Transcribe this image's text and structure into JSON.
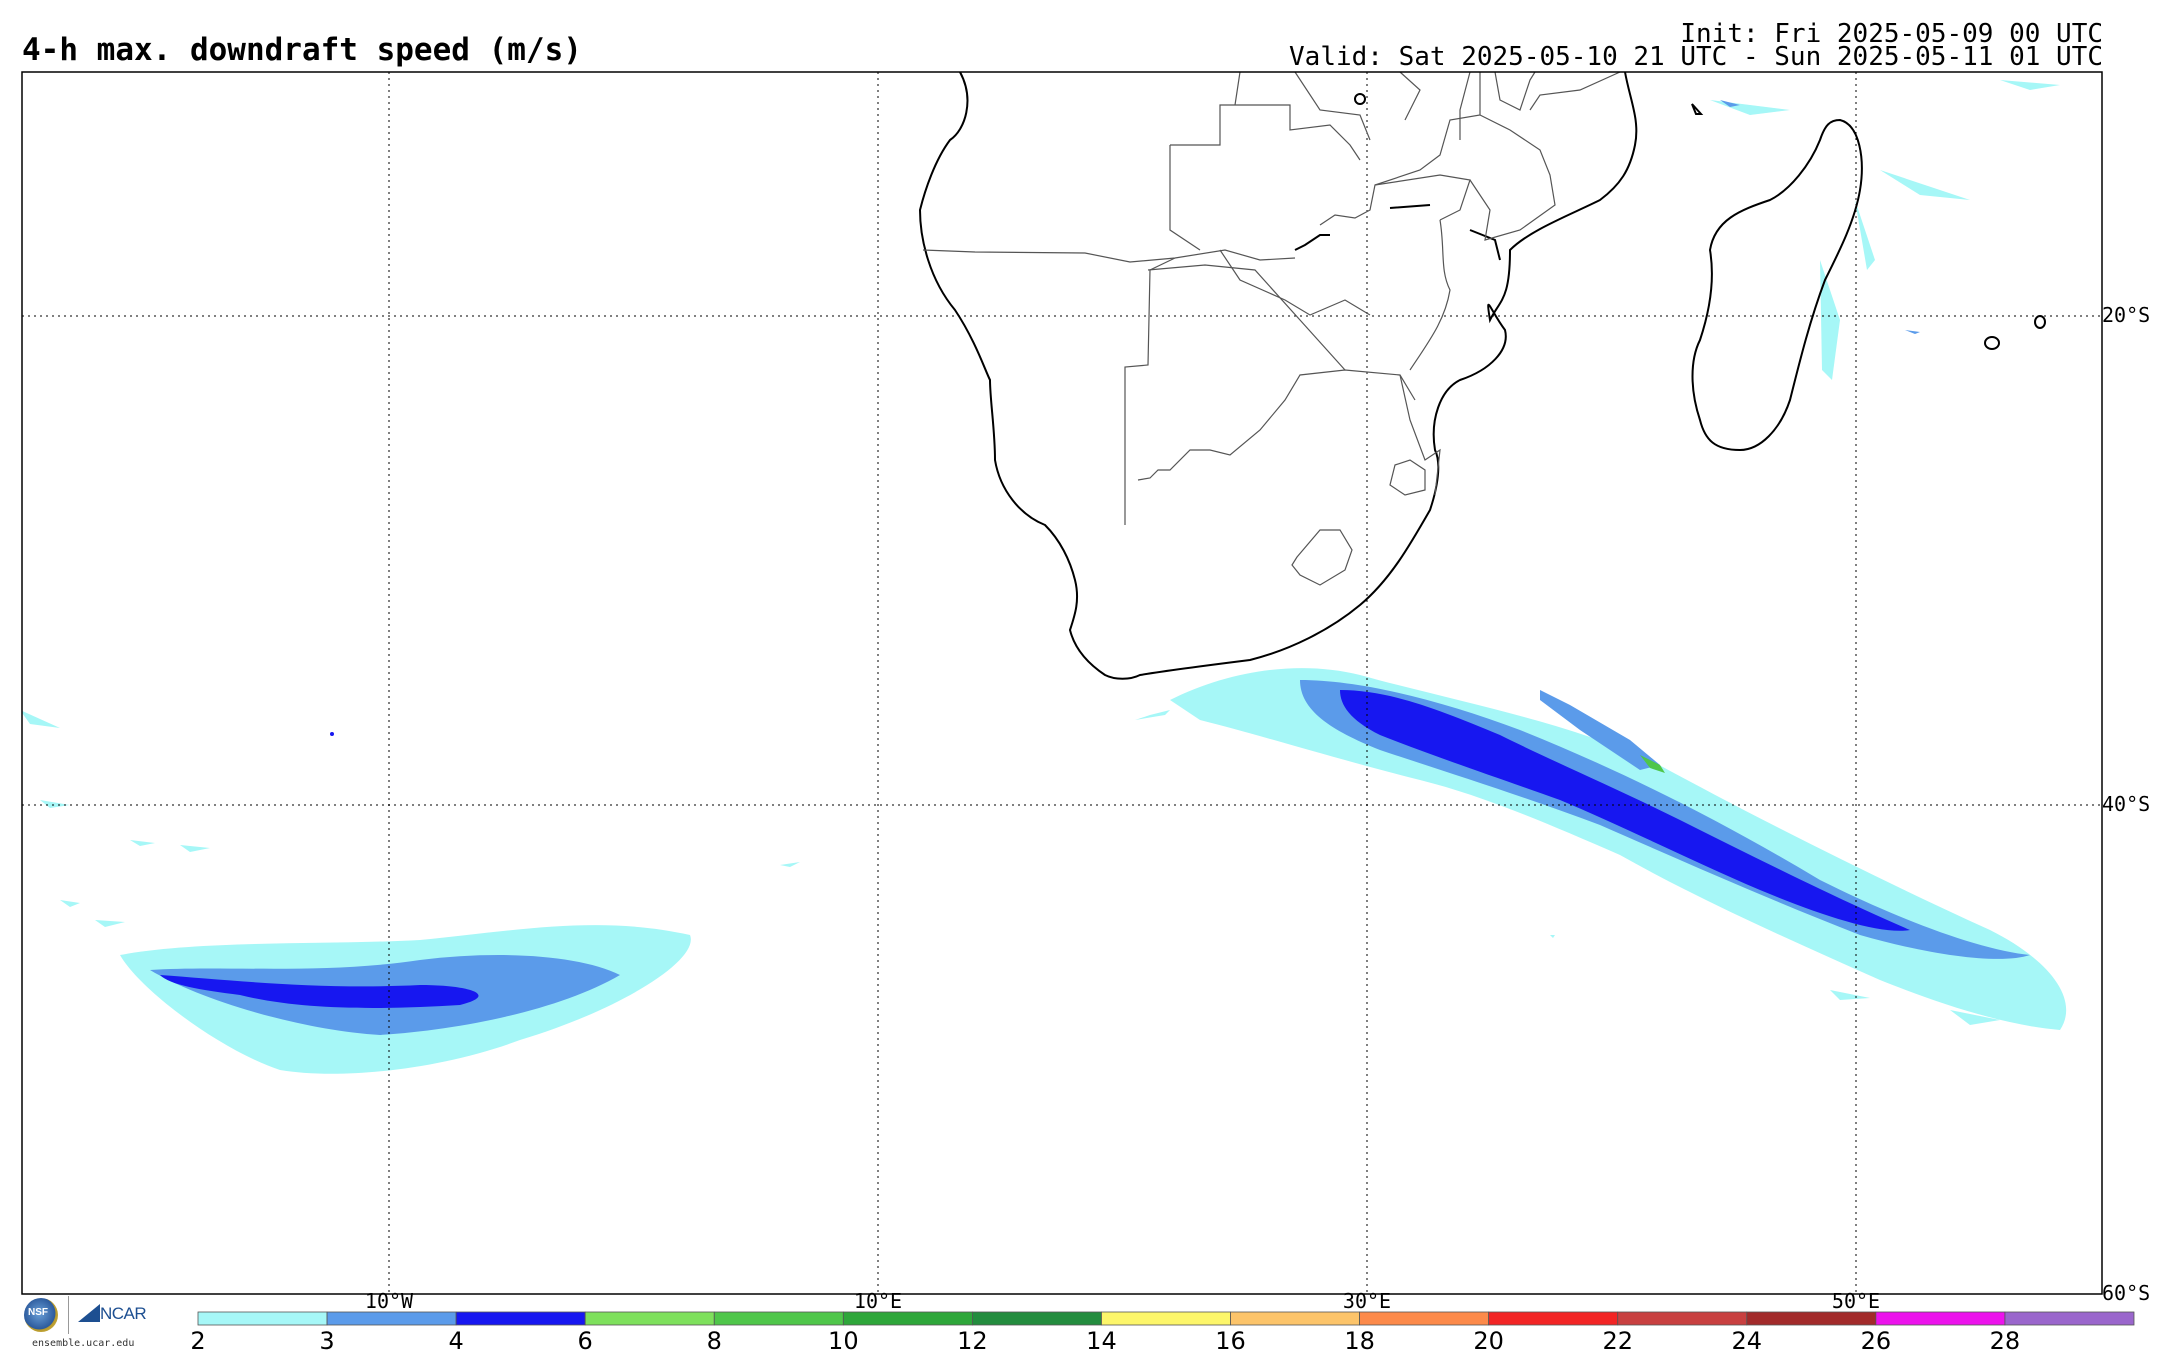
{
  "header": {
    "title": "4-h max. downdraft speed (m/s)",
    "init": "Init: Fri 2025-05-09 00 UTC",
    "valid": "Valid: Sat 2025-05-10 21 UTC - Sun 2025-05-11 01 UTC"
  },
  "map": {
    "lon_labels": [
      "10°W",
      "10°E",
      "30°E",
      "50°E"
    ],
    "lat_labels": [
      "20°S",
      "40°S",
      "60°S"
    ],
    "extent": {
      "lon": [
        -25,
        60
      ],
      "lat": [
        -60,
        10
      ]
    },
    "coastline_color": "#000000",
    "border_color": "#555555",
    "grid_style": "dotted"
  },
  "colorbar": {
    "ticks": [
      "2",
      "3",
      "4",
      "6",
      "8",
      "10",
      "12",
      "14",
      "16",
      "18",
      "20",
      "22",
      "24",
      "26",
      "28"
    ],
    "colors": [
      "#a6f7f7",
      "#5b9bea",
      "#1717f0",
      "#7ee05c",
      "#4fc64a",
      "#2ea63a",
      "#238c3e",
      "#fdf66a",
      "#fcc46a",
      "#fc8a4a",
      "#f22424",
      "#c84040",
      "#a22a2a",
      "#ec12ec",
      "#9a66cc"
    ]
  },
  "logos": {
    "nsf": "NSF",
    "ncar": "NCAR",
    "site": "ensemble.ucar.edu"
  }
}
